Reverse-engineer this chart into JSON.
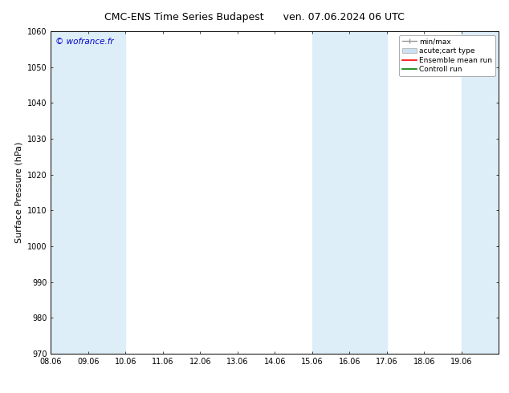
{
  "title_left": "CMC-ENS Time Series Budapest",
  "title_right": "ven. 07.06.2024 06 UTC",
  "ylabel": "Surface Pressure (hPa)",
  "ylim": [
    970,
    1060
  ],
  "yticks": [
    970,
    980,
    990,
    1000,
    1010,
    1020,
    1030,
    1040,
    1050,
    1060
  ],
  "xtick_labels": [
    "08.06",
    "09.06",
    "10.06",
    "11.06",
    "12.06",
    "13.06",
    "14.06",
    "15.06",
    "16.06",
    "17.06",
    "18.06",
    "19.06"
  ],
  "watermark": "© wofrance.fr",
  "watermark_color": "#0000cc",
  "bg_color": "#ffffff",
  "plot_bg_color": "#ffffff",
  "shaded_bands": [
    {
      "xmin": 0,
      "xmax": 1,
      "color": "#ddeef8"
    },
    {
      "xmin": 1,
      "xmax": 2,
      "color": "#ddeef8"
    },
    {
      "xmin": 7,
      "xmax": 8,
      "color": "#ddeef8"
    },
    {
      "xmin": 8,
      "xmax": 9,
      "color": "#ddeef8"
    },
    {
      "xmin": 11,
      "xmax": 12,
      "color": "#ddeef8"
    }
  ],
  "legend_entries": [
    {
      "label": "min/max",
      "color": "#aaaaaa",
      "type": "errorbar"
    },
    {
      "label": "acute;cart type",
      "color": "#cce0f0",
      "type": "bar"
    },
    {
      "label": "Ensemble mean run",
      "color": "#ff0000",
      "type": "line"
    },
    {
      "label": "Controll run",
      "color": "#008000",
      "type": "line"
    }
  ],
  "title_fontsize": 9,
  "axis_label_fontsize": 8,
  "tick_fontsize": 7,
  "legend_fontsize": 6.5
}
